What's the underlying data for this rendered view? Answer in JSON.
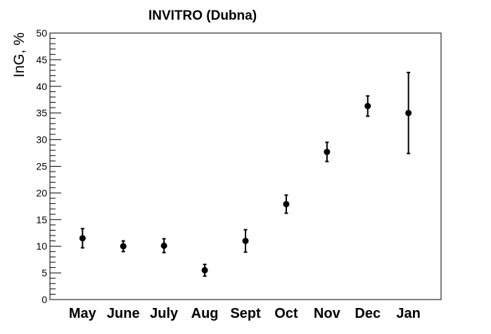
{
  "chart_data": {
    "type": "scatter",
    "title": "INVITRO (Dubna)",
    "xlabel": "",
    "ylabel": "InG, %",
    "ylim": [
      0,
      50
    ],
    "yticks": [
      "0",
      "5",
      "10",
      "15",
      "20",
      "25",
      "30",
      "35",
      "40",
      "45",
      "50"
    ],
    "grid": false,
    "categories": [
      "May",
      "June",
      "July",
      "Aug",
      "Sept",
      "Oct",
      "Nov",
      "Dec",
      "Jan"
    ],
    "values": [
      11.5,
      10.0,
      10.1,
      5.5,
      11.0,
      17.9,
      27.7,
      36.3,
      35.0
    ],
    "errors": [
      1.8,
      1.0,
      1.3,
      1.1,
      2.1,
      1.7,
      1.8,
      1.9,
      7.6
    ],
    "marker_color": "#000000"
  }
}
